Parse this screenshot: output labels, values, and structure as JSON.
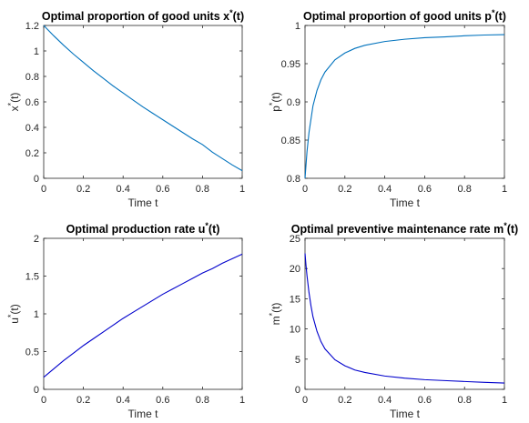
{
  "chart_data": [
    {
      "type": "line",
      "title": "Optimal proportion of good units x",
      "title_sup": "*",
      "title_tail": "(t)",
      "xlabel": "Time t",
      "ylabel": "x",
      "ylabel_sup": "*",
      "ylabel_tail": "(t)",
      "xlim": [
        0,
        1
      ],
      "ylim": [
        0,
        1.2
      ],
      "xticks": [
        0,
        0.2,
        0.4,
        0.6,
        0.8,
        1
      ],
      "xtick_labels": [
        "0",
        "0.2",
        "0.4",
        "0.6",
        "0.8",
        "1"
      ],
      "yticks": [
        0,
        0.2,
        0.4,
        0.6,
        0.8,
        1,
        1.2
      ],
      "ytick_labels": [
        "0",
        "0.2",
        "0.4",
        "0.6",
        "0.8",
        "1",
        "1.2"
      ],
      "grid": false,
      "series": [
        {
          "color": "#0072BD",
          "x": [
            0,
            0.05,
            0.1,
            0.15,
            0.2,
            0.25,
            0.3,
            0.35,
            0.4,
            0.45,
            0.5,
            0.55,
            0.6,
            0.65,
            0.7,
            0.75,
            0.8,
            0.85,
            0.9,
            0.95,
            1
          ],
          "y": [
            1.2,
            1.12,
            1.045,
            0.975,
            0.91,
            0.845,
            0.785,
            0.725,
            0.67,
            0.615,
            0.56,
            0.51,
            0.46,
            0.41,
            0.36,
            0.31,
            0.265,
            0.205,
            0.155,
            0.105,
            0.06
          ]
        }
      ]
    },
    {
      "type": "line",
      "title": "Optimal proportion of good units p",
      "title_sup": "*",
      "title_tail": "(t)",
      "xlabel": "Time t",
      "ylabel": "p",
      "ylabel_sup": "*",
      "ylabel_tail": "(t)",
      "xlim": [
        0,
        1
      ],
      "ylim": [
        0.8,
        1
      ],
      "xticks": [
        0,
        0.2,
        0.4,
        0.6,
        0.8,
        1
      ],
      "xtick_labels": [
        "0",
        "0.2",
        "0.4",
        "0.6",
        "0.8",
        "1"
      ],
      "yticks": [
        0.8,
        0.85,
        0.9,
        0.95,
        1
      ],
      "ytick_labels": [
        "0.8",
        "0.85",
        "0.9",
        "0.95",
        "1"
      ],
      "grid": false,
      "series": [
        {
          "color": "#0072BD",
          "x": [
            0,
            0.01,
            0.02,
            0.04,
            0.06,
            0.08,
            0.1,
            0.15,
            0.2,
            0.25,
            0.3,
            0.4,
            0.5,
            0.6,
            0.7,
            0.8,
            0.9,
            1
          ],
          "y": [
            0.8,
            0.835,
            0.86,
            0.895,
            0.915,
            0.929,
            0.939,
            0.955,
            0.964,
            0.97,
            0.974,
            0.979,
            0.982,
            0.984,
            0.985,
            0.9865,
            0.9875,
            0.988
          ]
        }
      ]
    },
    {
      "type": "line",
      "title": "Optimal production rate u",
      "title_sup": "*",
      "title_tail": "(t)",
      "xlabel": "Time t",
      "ylabel": "u",
      "ylabel_sup": "*",
      "ylabel_tail": "(t)",
      "xlim": [
        0,
        1
      ],
      "ylim": [
        0,
        2
      ],
      "xticks": [
        0,
        0.2,
        0.4,
        0.6,
        0.8,
        1
      ],
      "xtick_labels": [
        "0",
        "0.2",
        "0.4",
        "0.6",
        "0.8",
        "1"
      ],
      "yticks": [
        0,
        0.5,
        1,
        1.5,
        2
      ],
      "ytick_labels": [
        "0",
        "0.5",
        "1",
        "1.5",
        "2"
      ],
      "grid": false,
      "series": [
        {
          "color": "#0000CC",
          "x": [
            0,
            0.05,
            0.1,
            0.15,
            0.2,
            0.25,
            0.3,
            0.35,
            0.4,
            0.45,
            0.5,
            0.55,
            0.6,
            0.65,
            0.7,
            0.75,
            0.8,
            0.85,
            0.9,
            0.95,
            1
          ],
          "y": [
            0.16,
            0.27,
            0.38,
            0.48,
            0.58,
            0.67,
            0.76,
            0.85,
            0.94,
            1.02,
            1.1,
            1.18,
            1.26,
            1.33,
            1.4,
            1.47,
            1.54,
            1.6,
            1.67,
            1.73,
            1.79
          ]
        }
      ]
    },
    {
      "type": "line",
      "title": "Optimal preventive maintenance rate m",
      "title_sup": "*",
      "title_tail": "(t)",
      "xlabel": "Time t",
      "ylabel": "m",
      "ylabel_sup": "*",
      "ylabel_tail": "(t)",
      "xlim": [
        0,
        1
      ],
      "ylim": [
        0,
        25
      ],
      "xticks": [
        0,
        0.2,
        0.4,
        0.6,
        0.8,
        1
      ],
      "xtick_labels": [
        "0",
        "0.2",
        "0.4",
        "0.6",
        "0.8",
        "1"
      ],
      "yticks": [
        0,
        5,
        10,
        15,
        20,
        25
      ],
      "ytick_labels": [
        "0",
        "5",
        "10",
        "15",
        "20",
        "25"
      ],
      "grid": false,
      "series": [
        {
          "color": "#0000CC",
          "x": [
            0,
            0.005,
            0.01,
            0.02,
            0.03,
            0.04,
            0.06,
            0.08,
            0.1,
            0.15,
            0.2,
            0.25,
            0.3,
            0.4,
            0.5,
            0.6,
            0.7,
            0.8,
            0.9,
            1
          ],
          "y": [
            22.5,
            20.5,
            18.8,
            16.0,
            13.8,
            12.0,
            9.6,
            7.9,
            6.7,
            4.9,
            3.9,
            3.2,
            2.8,
            2.2,
            1.85,
            1.6,
            1.45,
            1.3,
            1.15,
            1.05
          ]
        }
      ]
    }
  ]
}
